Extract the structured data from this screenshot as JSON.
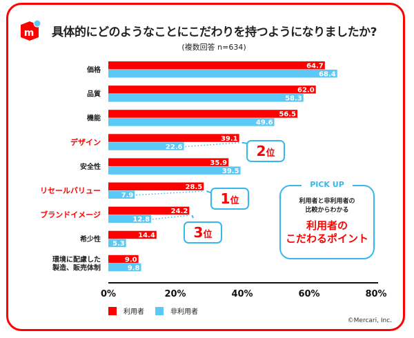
{
  "title": "具体的にどのようなことにこだわりを持つようになりましたか?",
  "subtitle": "(複数回答 n=634)",
  "colors": {
    "user": "#ff0000",
    "nonuser": "#5bc8f5",
    "accent_blue": "#34b8ee",
    "frame": "#ff0000"
  },
  "chart_data": {
    "type": "bar",
    "orientation": "horizontal",
    "categories": [
      "価格",
      "品質",
      "機能",
      "デザイン",
      "安全性",
      "リセールバリュー",
      "ブランドイメージ",
      "希少性",
      "環境に配慮した\n製造、販売体制"
    ],
    "highlighted_categories": [
      "デザイン",
      "リセールバリュー",
      "ブランドイメージ"
    ],
    "series": [
      {
        "name": "利用者",
        "color": "#ff0000",
        "values": [
          64.7,
          62.0,
          56.5,
          39.1,
          35.9,
          28.5,
          24.2,
          14.4,
          9.0
        ]
      },
      {
        "name": "非利用者",
        "color": "#5bc8f5",
        "values": [
          68.4,
          58.3,
          49.6,
          22.6,
          39.5,
          7.9,
          12.8,
          5.3,
          9.8
        ]
      }
    ],
    "xlim": [
      0,
      80
    ],
    "xticks": [
      "0%",
      "20%",
      "40%",
      "60%",
      "80%"
    ],
    "grid": false,
    "legend": "bottom-left"
  },
  "callouts": [
    {
      "category": "デザイン",
      "rank": "2",
      "suffix": "位"
    },
    {
      "category": "リセールバリュー",
      "rank": "1",
      "suffix": "位"
    },
    {
      "category": "ブランドイメージ",
      "rank": "3",
      "suffix": "位"
    }
  ],
  "pickup": {
    "heading": "PICK UP",
    "sub1": "利用者と非利用者の",
    "sub2": "比較からわかる",
    "big1": "利用者の",
    "big2": "こだわるポイント"
  },
  "legend": {
    "user": "利用者",
    "nonuser": "非利用者"
  },
  "logo_text": "m",
  "copyright": "©Mercari, Inc."
}
